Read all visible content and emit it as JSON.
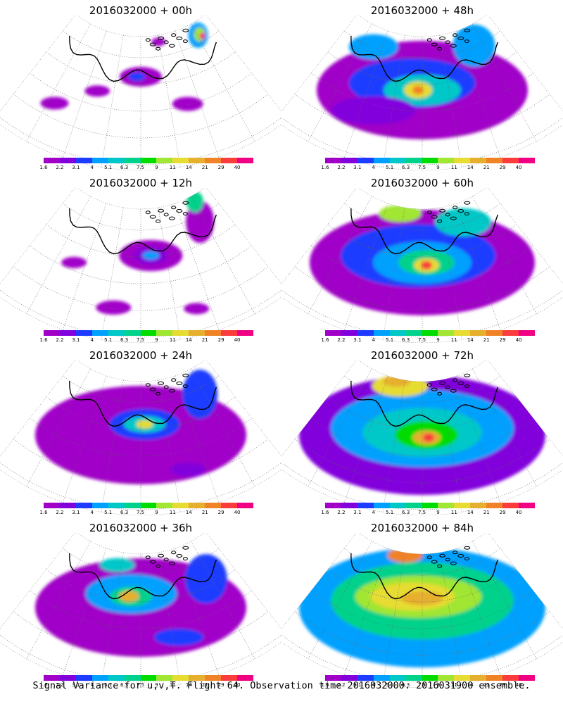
{
  "panels": [
    {
      "title": "2016032000 + 00h",
      "field": "weak_00"
    },
    {
      "title": "2016032000 + 48h",
      "field": "strong_48"
    },
    {
      "title": "2016032000 + 12h",
      "field": "weak_12"
    },
    {
      "title": "2016032000 + 60h",
      "field": "strong_60"
    },
    {
      "title": "2016032000 + 24h",
      "field": "medium_24"
    },
    {
      "title": "2016032000 + 72h",
      "field": "strong_72"
    },
    {
      "title": "2016032000 + 36h",
      "field": "medium_36"
    },
    {
      "title": "2016032000 + 84h",
      "field": "strong_84"
    }
  ],
  "colorbar": {
    "colors": [
      "#a000c8",
      "#8200dc",
      "#1e3cff",
      "#00a0ff",
      "#00c8c8",
      "#00d28c",
      "#00dc00",
      "#a0e632",
      "#e6dc32",
      "#e6af2d",
      "#f08228",
      "#fa3c3c",
      "#f00082"
    ],
    "labels": [
      "1.6",
      "2.2",
      "3.1",
      "4",
      "5.1",
      "6.3",
      "7.5",
      "9",
      "11",
      "14",
      "21",
      "29",
      "40"
    ]
  },
  "footer": "Signal Variance for u,v,T. Flight 64. Observation time 2016032000. 2016031900 ensemble."
}
